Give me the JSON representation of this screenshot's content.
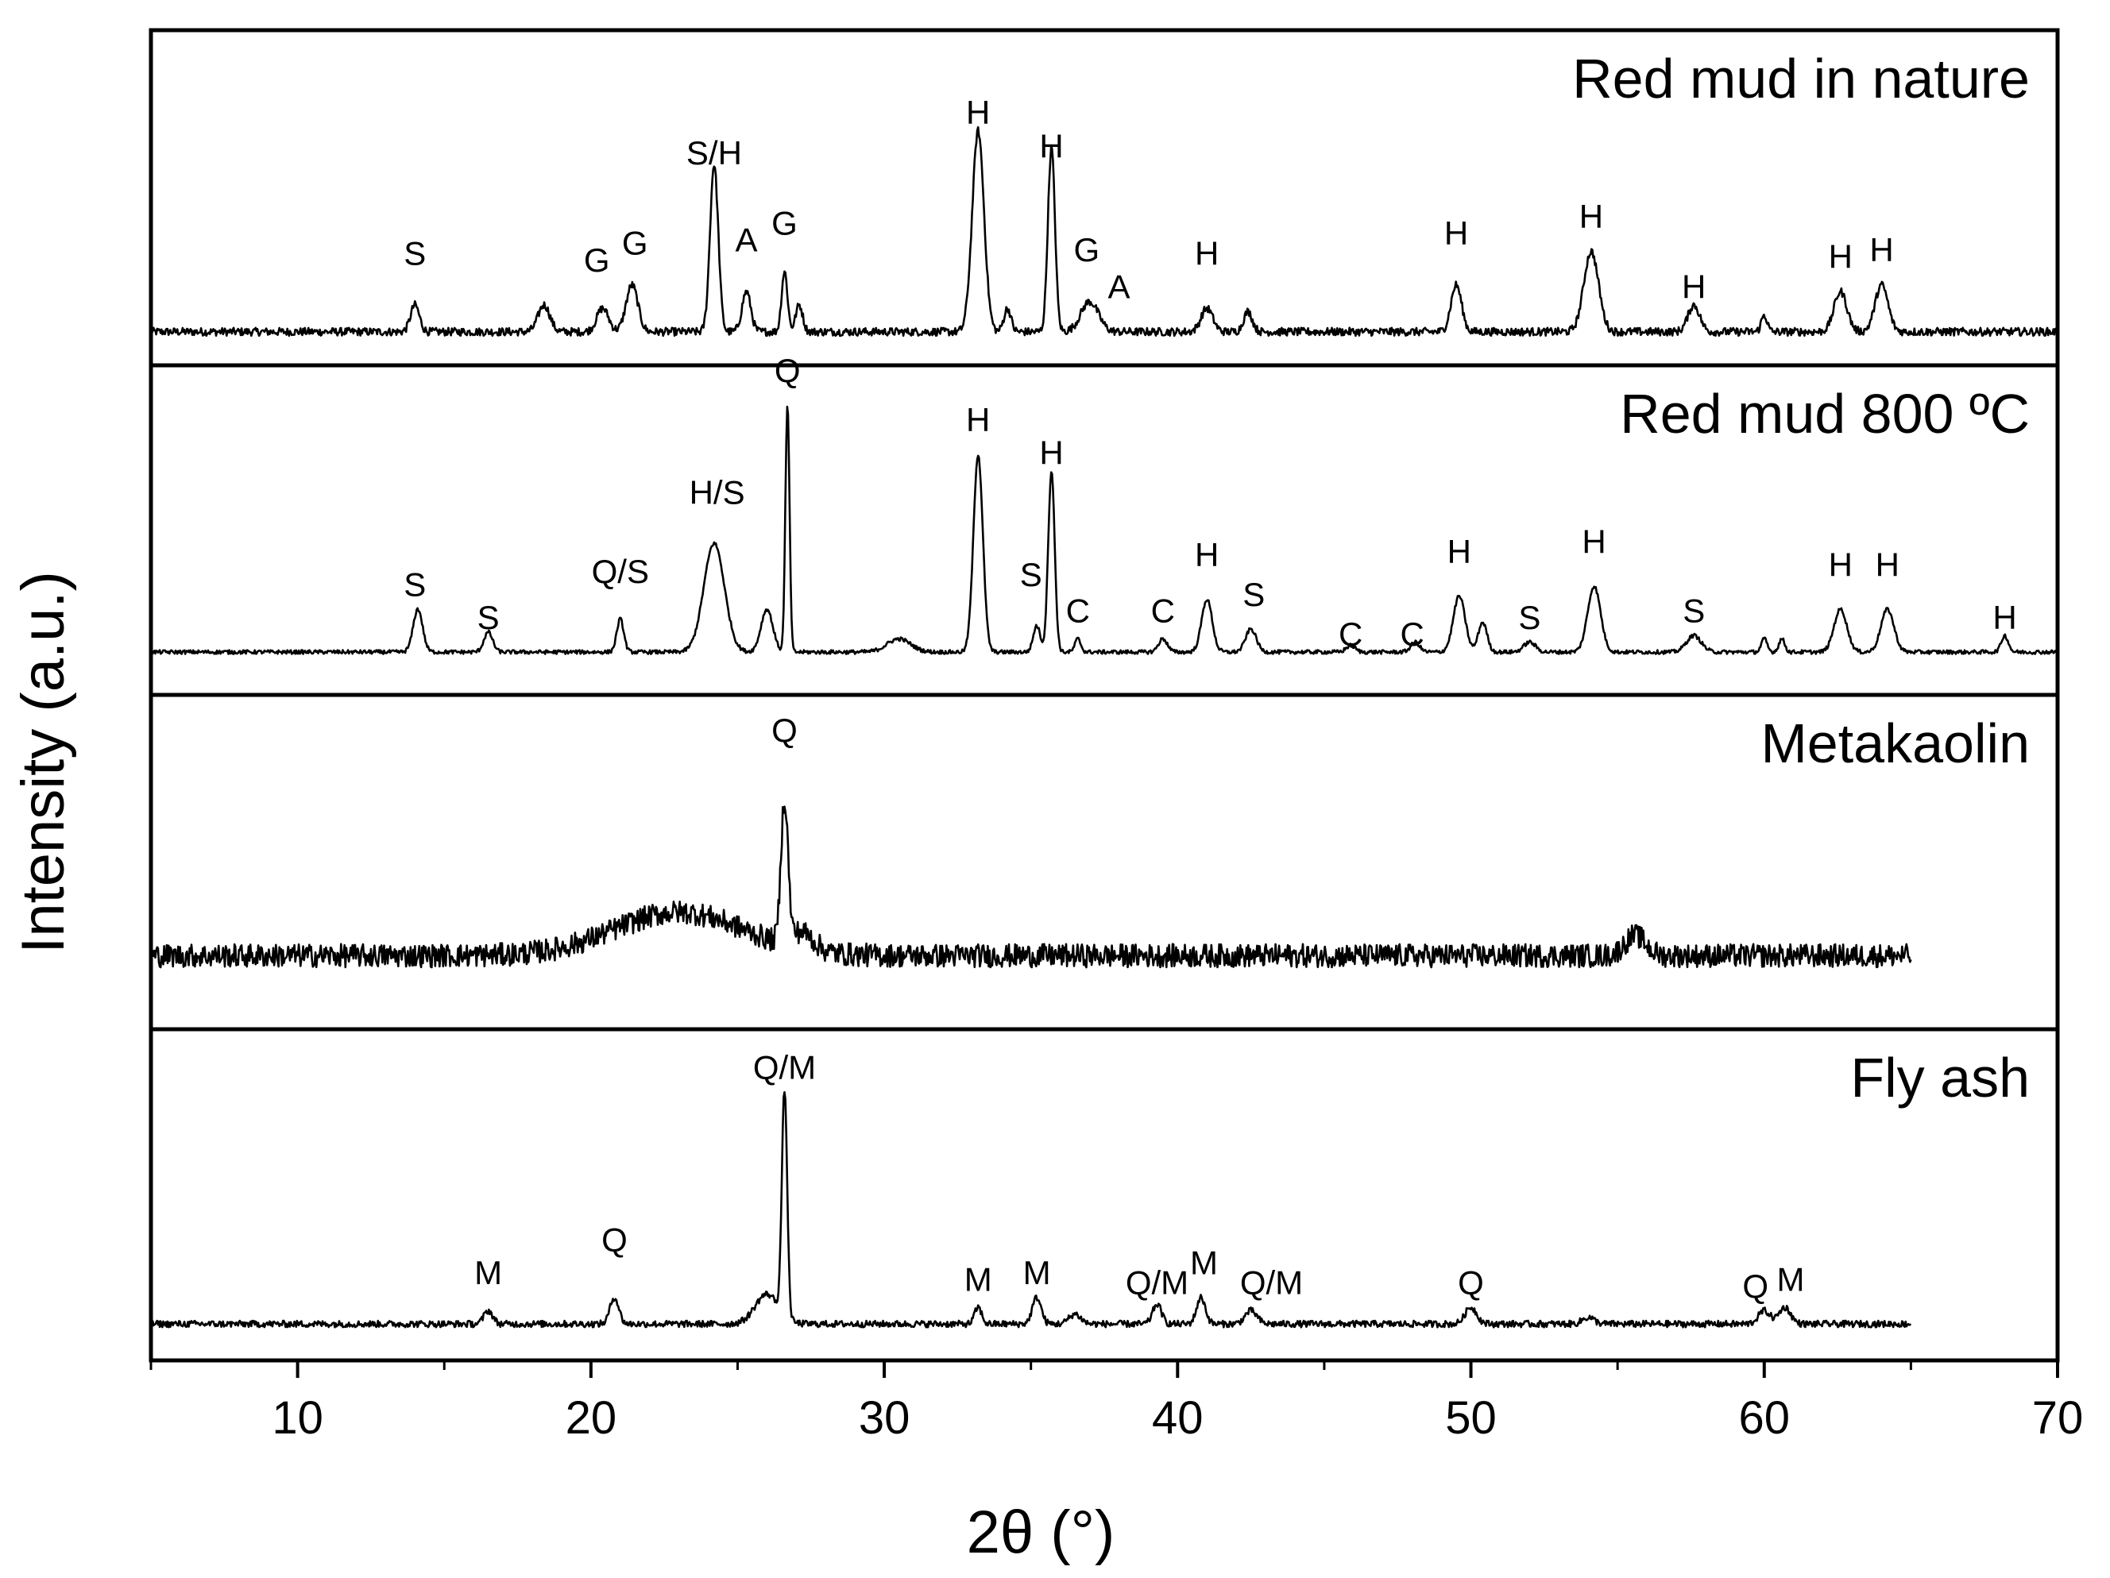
{
  "chart_data": {
    "type": "line",
    "xlabel": "2θ (°)",
    "ylabel": "Intensity (a.u.)",
    "xlim": [
      5,
      70
    ],
    "xticks": [
      10,
      20,
      30,
      40,
      50,
      60,
      70
    ],
    "xtick_labels": [
      "10",
      "20",
      "30",
      "40",
      "50",
      "60",
      "70"
    ],
    "grid": false,
    "layout": "4 stacked panels sharing x-axis",
    "series": [
      {
        "name": "Red mud in nature",
        "x_range": [
          5,
          70
        ],
        "baseline": 0.1,
        "noise": 0.012,
        "peaks": [
          {
            "x": 14.0,
            "h": 0.08,
            "w": 0.15
          },
          {
            "x": 18.4,
            "h": 0.08,
            "w": 0.2
          },
          {
            "x": 20.4,
            "h": 0.07,
            "w": 0.2
          },
          {
            "x": 21.4,
            "h": 0.14,
            "w": 0.2
          },
          {
            "x": 24.2,
            "h": 0.5,
            "w": 0.14
          },
          {
            "x": 25.3,
            "h": 0.12,
            "w": 0.15
          },
          {
            "x": 26.6,
            "h": 0.18,
            "w": 0.1
          },
          {
            "x": 27.1,
            "h": 0.08,
            "w": 0.12
          },
          {
            "x": 33.2,
            "h": 0.6,
            "w": 0.2
          },
          {
            "x": 34.2,
            "h": 0.07,
            "w": 0.12
          },
          {
            "x": 35.7,
            "h": 0.55,
            "w": 0.12
          },
          {
            "x": 37.0,
            "h": 0.09,
            "w": 0.3
          },
          {
            "x": 41.0,
            "h": 0.07,
            "w": 0.2
          },
          {
            "x": 42.4,
            "h": 0.06,
            "w": 0.15
          },
          {
            "x": 49.5,
            "h": 0.14,
            "w": 0.18
          },
          {
            "x": 54.1,
            "h": 0.24,
            "w": 0.25
          },
          {
            "x": 57.6,
            "h": 0.08,
            "w": 0.2
          },
          {
            "x": 60.0,
            "h": 0.05,
            "w": 0.1
          },
          {
            "x": 62.6,
            "h": 0.12,
            "w": 0.22
          },
          {
            "x": 64.0,
            "h": 0.14,
            "w": 0.22
          }
        ],
        "annotations": [
          {
            "text": "S",
            "x": 14.0,
            "y": 0.3
          },
          {
            "text": "G",
            "x": 20.2,
            "y": 0.28
          },
          {
            "text": "G",
            "x": 21.5,
            "y": 0.33
          },
          {
            "text": "S/H",
            "x": 24.2,
            "y": 0.6
          },
          {
            "text": "A",
            "x": 25.3,
            "y": 0.34
          },
          {
            "text": "G",
            "x": 26.6,
            "y": 0.39
          },
          {
            "text": "H",
            "x": 33.2,
            "y": 0.72
          },
          {
            "text": "H",
            "x": 35.7,
            "y": 0.62
          },
          {
            "text": "G",
            "x": 36.9,
            "y": 0.31
          },
          {
            "text": "A",
            "x": 38.0,
            "y": 0.2
          },
          {
            "text": "H",
            "x": 41.0,
            "y": 0.3
          },
          {
            "text": "H",
            "x": 49.5,
            "y": 0.36
          },
          {
            "text": "H",
            "x": 54.1,
            "y": 0.41
          },
          {
            "text": "H",
            "x": 57.6,
            "y": 0.2
          },
          {
            "text": "H",
            "x": 62.6,
            "y": 0.29
          },
          {
            "text": "H",
            "x": 64.0,
            "y": 0.31
          }
        ]
      },
      {
        "name": "Red mud 800 ºC",
        "x_range": [
          5,
          70
        ],
        "baseline": 0.13,
        "noise": 0.006,
        "peaks": [
          {
            "x": 14.1,
            "h": 0.13,
            "w": 0.16
          },
          {
            "x": 16.5,
            "h": 0.06,
            "w": 0.15
          },
          {
            "x": 21.0,
            "h": 0.1,
            "w": 0.12
          },
          {
            "x": 24.2,
            "h": 0.33,
            "w": 0.35
          },
          {
            "x": 26.0,
            "h": 0.13,
            "w": 0.2
          },
          {
            "x": 26.7,
            "h": 0.75,
            "w": 0.07
          },
          {
            "x": 30.5,
            "h": 0.04,
            "w": 0.4
          },
          {
            "x": 33.2,
            "h": 0.6,
            "w": 0.16
          },
          {
            "x": 35.7,
            "h": 0.55,
            "w": 0.11
          },
          {
            "x": 35.2,
            "h": 0.08,
            "w": 0.12
          },
          {
            "x": 36.6,
            "h": 0.04,
            "w": 0.1
          },
          {
            "x": 39.5,
            "h": 0.04,
            "w": 0.15
          },
          {
            "x": 41.0,
            "h": 0.16,
            "w": 0.18
          },
          {
            "x": 42.5,
            "h": 0.07,
            "w": 0.18
          },
          {
            "x": 45.9,
            "h": 0.02,
            "w": 0.15
          },
          {
            "x": 48.1,
            "h": 0.03,
            "w": 0.15
          },
          {
            "x": 49.6,
            "h": 0.17,
            "w": 0.2
          },
          {
            "x": 50.4,
            "h": 0.09,
            "w": 0.15
          },
          {
            "x": 52.0,
            "h": 0.03,
            "w": 0.2
          },
          {
            "x": 54.2,
            "h": 0.2,
            "w": 0.22
          },
          {
            "x": 57.6,
            "h": 0.05,
            "w": 0.25
          },
          {
            "x": 60.0,
            "h": 0.04,
            "w": 0.1
          },
          {
            "x": 60.6,
            "h": 0.04,
            "w": 0.1
          },
          {
            "x": 62.6,
            "h": 0.13,
            "w": 0.22
          },
          {
            "x": 64.2,
            "h": 0.13,
            "w": 0.22
          },
          {
            "x": 68.2,
            "h": 0.05,
            "w": 0.12
          }
        ],
        "annotations": [
          {
            "text": "S",
            "x": 14.0,
            "y": 0.3
          },
          {
            "text": "S",
            "x": 16.5,
            "y": 0.2
          },
          {
            "text": "Q/S",
            "x": 21.0,
            "y": 0.34
          },
          {
            "text": "H/S",
            "x": 24.3,
            "y": 0.58
          },
          {
            "text": "Q",
            "x": 26.7,
            "y": 0.95
          },
          {
            "text": "H",
            "x": 33.2,
            "y": 0.8
          },
          {
            "text": "S",
            "x": 35.0,
            "y": 0.33
          },
          {
            "text": "H",
            "x": 35.7,
            "y": 0.7
          },
          {
            "text": "C",
            "x": 36.6,
            "y": 0.22
          },
          {
            "text": "C",
            "x": 39.5,
            "y": 0.22
          },
          {
            "text": "H",
            "x": 41.0,
            "y": 0.39
          },
          {
            "text": "S",
            "x": 42.6,
            "y": 0.27
          },
          {
            "text": "C",
            "x": 45.9,
            "y": 0.15
          },
          {
            "text": "C",
            "x": 48.0,
            "y": 0.15
          },
          {
            "text": "H",
            "x": 49.6,
            "y": 0.4
          },
          {
            "text": "S",
            "x": 52.0,
            "y": 0.2
          },
          {
            "text": "H",
            "x": 54.2,
            "y": 0.43
          },
          {
            "text": "S",
            "x": 57.6,
            "y": 0.22
          },
          {
            "text": "H",
            "x": 62.6,
            "y": 0.36
          },
          {
            "text": "H",
            "x": 64.2,
            "y": 0.36
          },
          {
            "text": "H",
            "x": 68.2,
            "y": 0.2
          }
        ]
      },
      {
        "name": "Metakaolin",
        "x_range": [
          5,
          65
        ],
        "baseline": 0.22,
        "noise": 0.035,
        "peaks": [
          {
            "x": 23.0,
            "h": 0.13,
            "w": 2.2
          },
          {
            "x": 26.6,
            "h": 0.42,
            "w": 0.12
          },
          {
            "x": 27.2,
            "h": 0.05,
            "w": 0.4
          },
          {
            "x": 55.6,
            "h": 0.06,
            "w": 0.35
          }
        ],
        "annotations": [
          {
            "text": "Q",
            "x": 26.6,
            "y": 0.86
          }
        ]
      },
      {
        "name": "Fly ash",
        "x_range": [
          5,
          65
        ],
        "baseline": 0.11,
        "noise": 0.01,
        "peaks": [
          {
            "x": 16.5,
            "h": 0.04,
            "w": 0.15
          },
          {
            "x": 20.8,
            "h": 0.08,
            "w": 0.15
          },
          {
            "x": 26.0,
            "h": 0.09,
            "w": 0.4
          },
          {
            "x": 26.6,
            "h": 0.68,
            "w": 0.09
          },
          {
            "x": 33.2,
            "h": 0.05,
            "w": 0.12
          },
          {
            "x": 35.2,
            "h": 0.08,
            "w": 0.15
          },
          {
            "x": 36.5,
            "h": 0.03,
            "w": 0.2
          },
          {
            "x": 39.3,
            "h": 0.06,
            "w": 0.15
          },
          {
            "x": 40.8,
            "h": 0.08,
            "w": 0.15
          },
          {
            "x": 42.5,
            "h": 0.04,
            "w": 0.2
          },
          {
            "x": 50.0,
            "h": 0.05,
            "w": 0.2
          },
          {
            "x": 54.0,
            "h": 0.02,
            "w": 0.2
          },
          {
            "x": 60.0,
            "h": 0.04,
            "w": 0.2
          },
          {
            "x": 60.7,
            "h": 0.05,
            "w": 0.2
          }
        ],
        "annotations": [
          {
            "text": "M",
            "x": 16.5,
            "y": 0.23
          },
          {
            "text": "Q",
            "x": 20.8,
            "y": 0.33
          },
          {
            "text": "Q/M",
            "x": 26.6,
            "y": 0.85
          },
          {
            "text": "M",
            "x": 33.2,
            "y": 0.21
          },
          {
            "text": "M",
            "x": 35.2,
            "y": 0.23
          },
          {
            "text": "Q/M",
            "x": 39.3,
            "y": 0.2
          },
          {
            "text": "M",
            "x": 40.9,
            "y": 0.26
          },
          {
            "text": "Q/M",
            "x": 43.2,
            "y": 0.2
          },
          {
            "text": "Q",
            "x": 50.0,
            "y": 0.2
          },
          {
            "text": "Q",
            "x": 59.7,
            "y": 0.19
          },
          {
            "text": "M",
            "x": 60.9,
            "y": 0.21
          }
        ]
      }
    ]
  }
}
